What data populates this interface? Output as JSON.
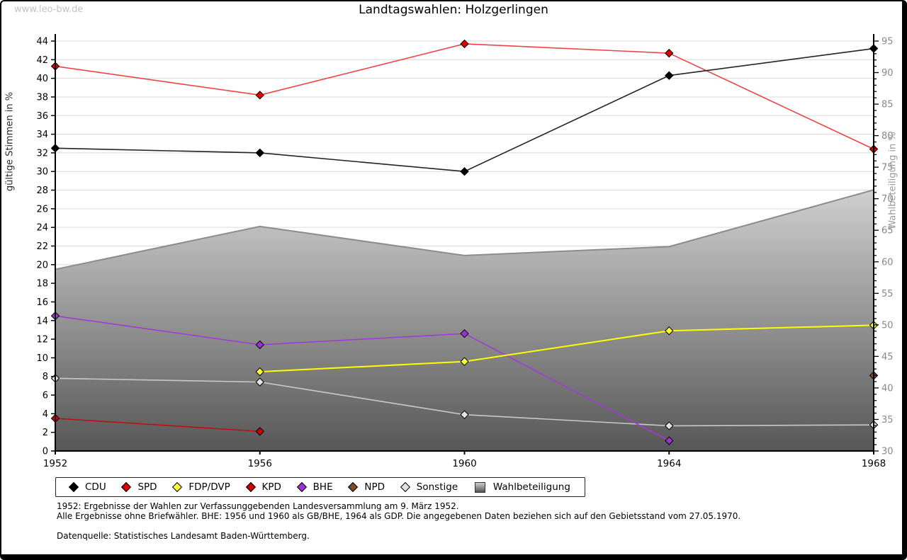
{
  "watermark": "www.leo-bw.de",
  "title": "Landtagswahlen: Holzgerlingen",
  "axes": {
    "left_label": "gültige Stimmen in %",
    "right_label": "Wahlbeteiligung in %",
    "left_min": 0,
    "left_max": 44,
    "left_step": 2,
    "right_min": 30,
    "right_max": 95,
    "right_minor_step": 1,
    "right_major_step": 5,
    "x_ticks": [
      "1952",
      "1956",
      "1960",
      "1964",
      "1968"
    ]
  },
  "chart_data": {
    "type": "line",
    "title": "Landtagswahlen: Holzgerlingen",
    "xlabel": "",
    "ylabel_left": "gültige Stimmen in %",
    "ylabel_right": "Wahlbeteiligung in %",
    "x": [
      1952,
      1956,
      1960,
      1964,
      1968
    ],
    "ylim_left": [
      0,
      44
    ],
    "ylim_right": [
      30,
      95
    ],
    "grid": true,
    "legend_position": "bottom",
    "series": [
      {
        "name": "CDU",
        "axis": "left",
        "type": "line",
        "values": [
          32.5,
          32.0,
          30.0,
          40.3,
          43.2
        ],
        "line_color": "#222222",
        "marker_color": "#000000"
      },
      {
        "name": "SPD",
        "axis": "left",
        "type": "line",
        "values": [
          41.3,
          38.2,
          43.7,
          42.7,
          32.4
        ],
        "line_color": "#ee4444",
        "marker_color": "#dd0000"
      },
      {
        "name": "FDP/DVP",
        "axis": "left",
        "type": "line",
        "values": [
          null,
          8.5,
          9.6,
          12.9,
          13.5
        ],
        "line_color": "#ffff00",
        "marker_color": "#ffff33"
      },
      {
        "name": "KPD",
        "axis": "left",
        "type": "line",
        "values": [
          3.5,
          2.1,
          null,
          null,
          null
        ],
        "line_color": "#bb1111",
        "marker_color": "#cc0000"
      },
      {
        "name": "BHE",
        "axis": "left",
        "type": "line",
        "values": [
          14.5,
          11.4,
          12.6,
          1.1,
          null
        ],
        "line_color": "#a23bd6",
        "marker_color": "#9933cc"
      },
      {
        "name": "NPD",
        "axis": "left",
        "type": "line",
        "values": [
          null,
          null,
          null,
          null,
          8.1
        ],
        "line_color": "#7b4a2b",
        "marker_color": "#7b4a2b"
      },
      {
        "name": "Sonstige",
        "axis": "left",
        "type": "line",
        "values": [
          7.8,
          7.4,
          3.9,
          2.7,
          2.8
        ],
        "line_color": "#c9c9c9",
        "marker_color": "#e2e2e2"
      },
      {
        "name": "Wahlbeteiligung",
        "axis": "right",
        "type": "area",
        "values": [
          58.8,
          65.6,
          61.0,
          62.4,
          71.4
        ],
        "line_color": "#8c8c8c",
        "fill_top": "#cfcfcf",
        "fill_bottom": "#575757"
      }
    ]
  },
  "footnotes": {
    "line1": "1952: Ergebnisse der Wahlen zur Verfassunggebenden Landesversammlung am 9. März 1952.",
    "line2": "Alle Ergebnisse ohne Briefwähler. BHE: 1956 und 1960 als GB/BHE, 1964 als GDP. Die angegebenen Daten beziehen sich auf den Gebietsstand vom 27.05.1970.",
    "source": "Datenquelle: Statistisches Landesamt Baden-Württemberg."
  }
}
